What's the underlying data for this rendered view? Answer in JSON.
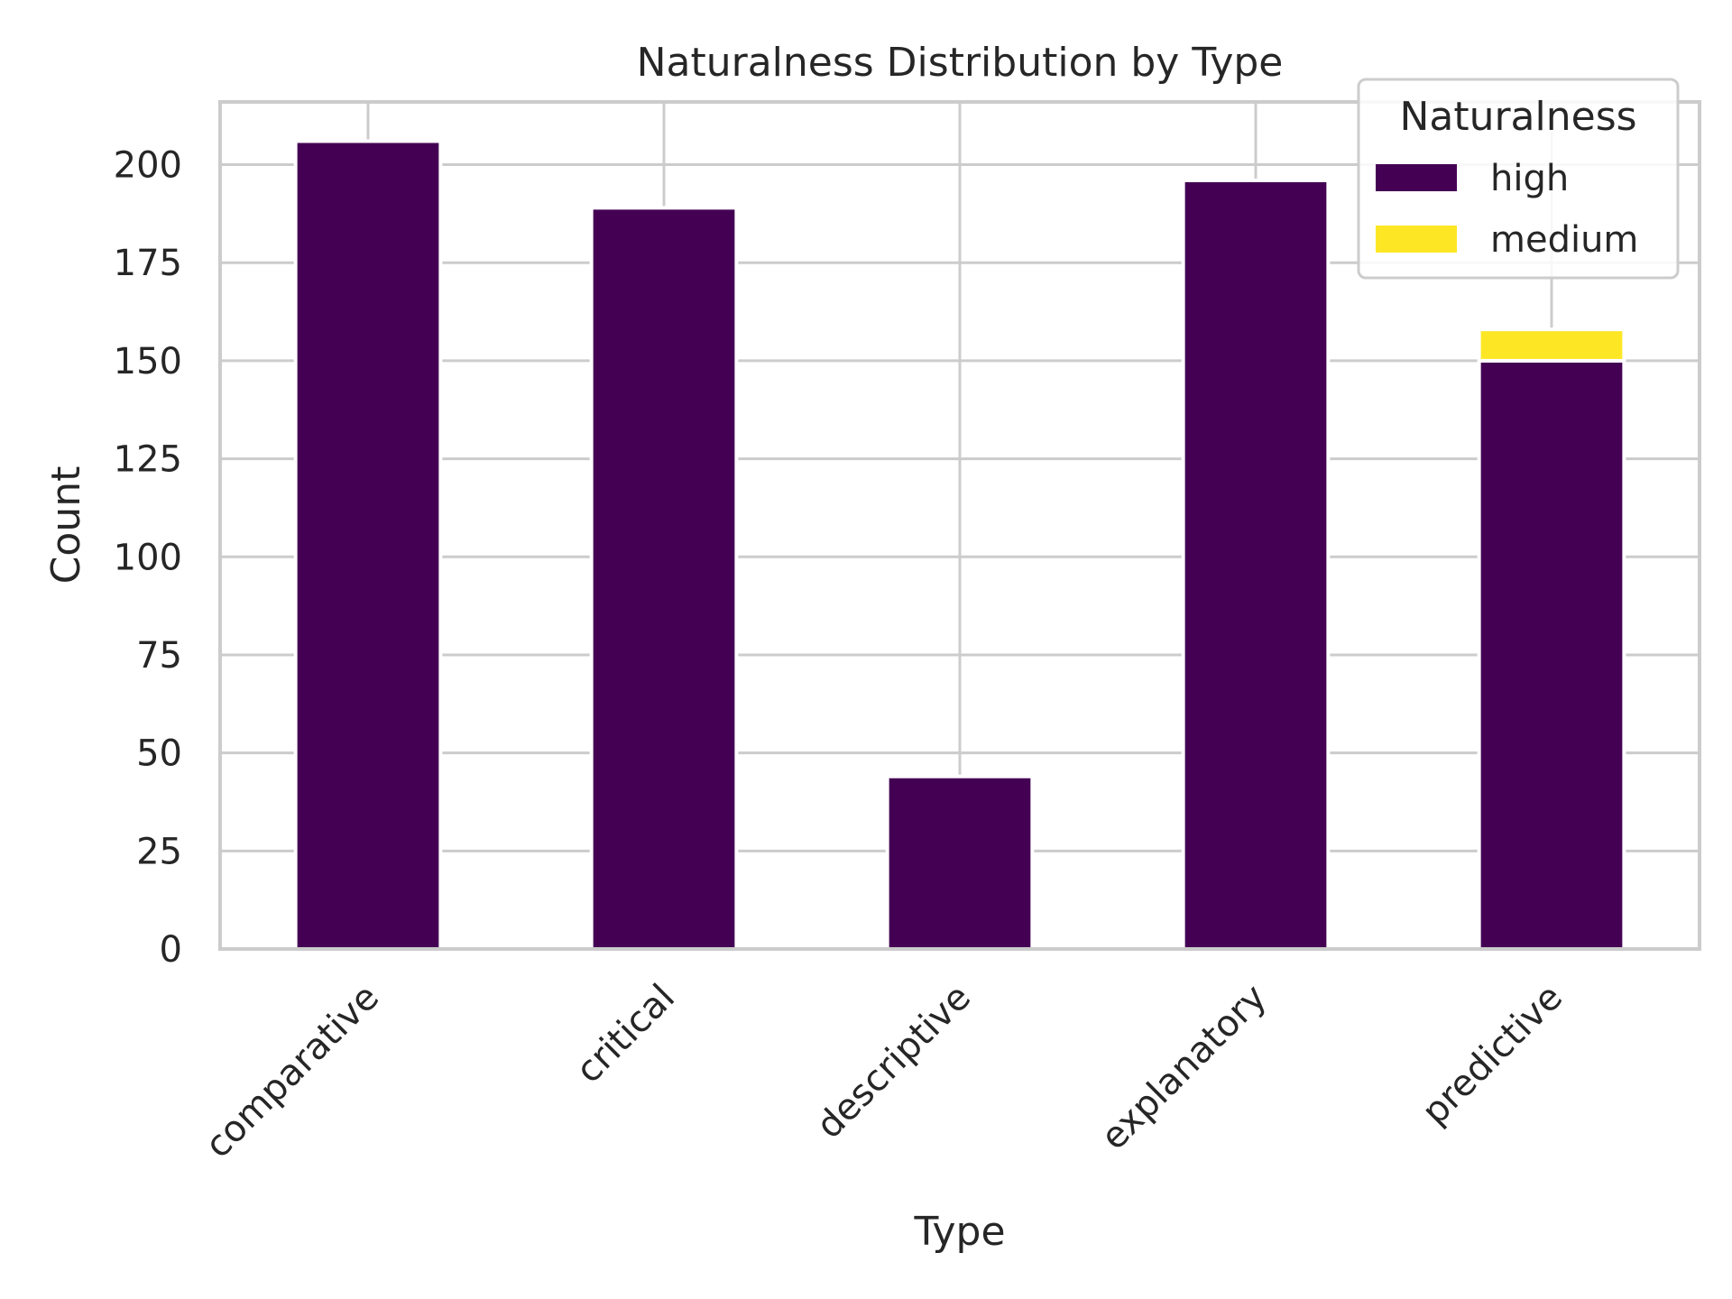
{
  "chart_data": {
    "type": "bar",
    "stacked": true,
    "title": "Naturalness Distribution by Type",
    "xlabel": "Type",
    "ylabel": "Count",
    "categories": [
      "comparative",
      "critical",
      "descriptive",
      "explanatory",
      "predictive"
    ],
    "series": [
      {
        "name": "high",
        "values": [
          206,
          189,
          44,
          196,
          150
        ],
        "color": "#440154"
      },
      {
        "name": "medium",
        "values": [
          0,
          0,
          0,
          0,
          8
        ],
        "color": "#fde725"
      }
    ],
    "ylim": [
      0,
      216
    ],
    "yticks": [
      0,
      25,
      50,
      75,
      100,
      125,
      150,
      175,
      200
    ],
    "grid": true,
    "legend": {
      "title": "Naturalness",
      "placement": "top-right"
    }
  }
}
